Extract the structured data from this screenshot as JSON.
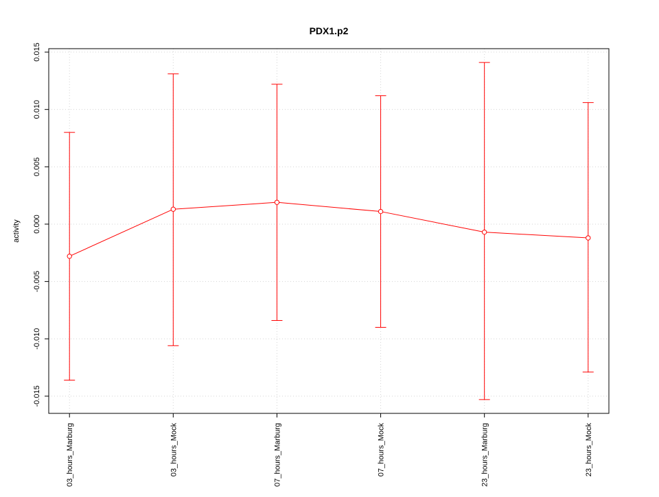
{
  "chart_data": {
    "type": "line",
    "title": "PDX1.p2",
    "xlabel": "",
    "ylabel": "activity",
    "categories": [
      "03_hours_Marburg",
      "03_hours_Mock",
      "07_hours_Marburg",
      "07_hours_Mock",
      "23_hours_Marburg",
      "23_hours_Mock"
    ],
    "values": [
      -0.0028,
      0.0013,
      0.0019,
      0.0011,
      -0.0007,
      -0.0012
    ],
    "error_upper": [
      0.008,
      0.0131,
      0.0122,
      0.0112,
      0.0141,
      0.0106
    ],
    "error_lower": [
      -0.0136,
      -0.0106,
      -0.0084,
      -0.009,
      -0.0153,
      -0.0129
    ],
    "yticks": [
      "-0.015",
      "-0.010",
      "-0.005",
      "0.000",
      "0.005",
      "0.010",
      "0.015"
    ],
    "ylim": [
      -0.0165,
      0.0153
    ],
    "grid": true,
    "colors": {
      "series": "#ff0000",
      "grid": "#d3d3d3",
      "axis": "#000000"
    }
  }
}
